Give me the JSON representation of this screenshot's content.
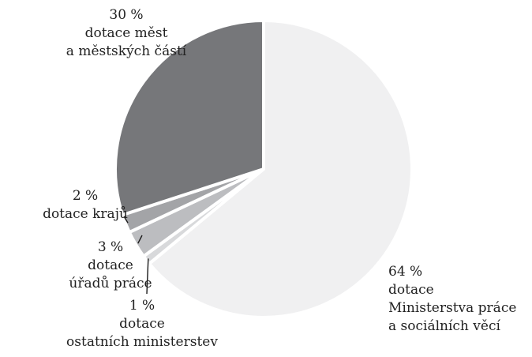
{
  "chart_data": {
    "type": "pie",
    "title": "",
    "slices": [
      {
        "value": 64,
        "value_label": "64 %",
        "label": [
          "dotace",
          "Ministerstva práce",
          "a sociálních věcí"
        ],
        "color": "#f0f0f1"
      },
      {
        "value": 1,
        "value_label": "1 %",
        "label": [
          "dotace",
          "ostatních ministerstev"
        ],
        "color": "#d8d9db"
      },
      {
        "value": 3,
        "value_label": "3 %",
        "label": [
          "dotace",
          "úřadů práce"
        ],
        "color": "#bcbdc0"
      },
      {
        "value": 2,
        "value_label": "2 %",
        "label": [
          "dotace krajů"
        ],
        "color": "#a3a4a7"
      },
      {
        "value": 30,
        "value_label": "30 %",
        "label": [
          "dotace měst",
          "a městských částí"
        ],
        "color": "#76777a"
      }
    ],
    "start_angle": "12 o'clock",
    "direction": "clockwise",
    "legend": "none"
  }
}
